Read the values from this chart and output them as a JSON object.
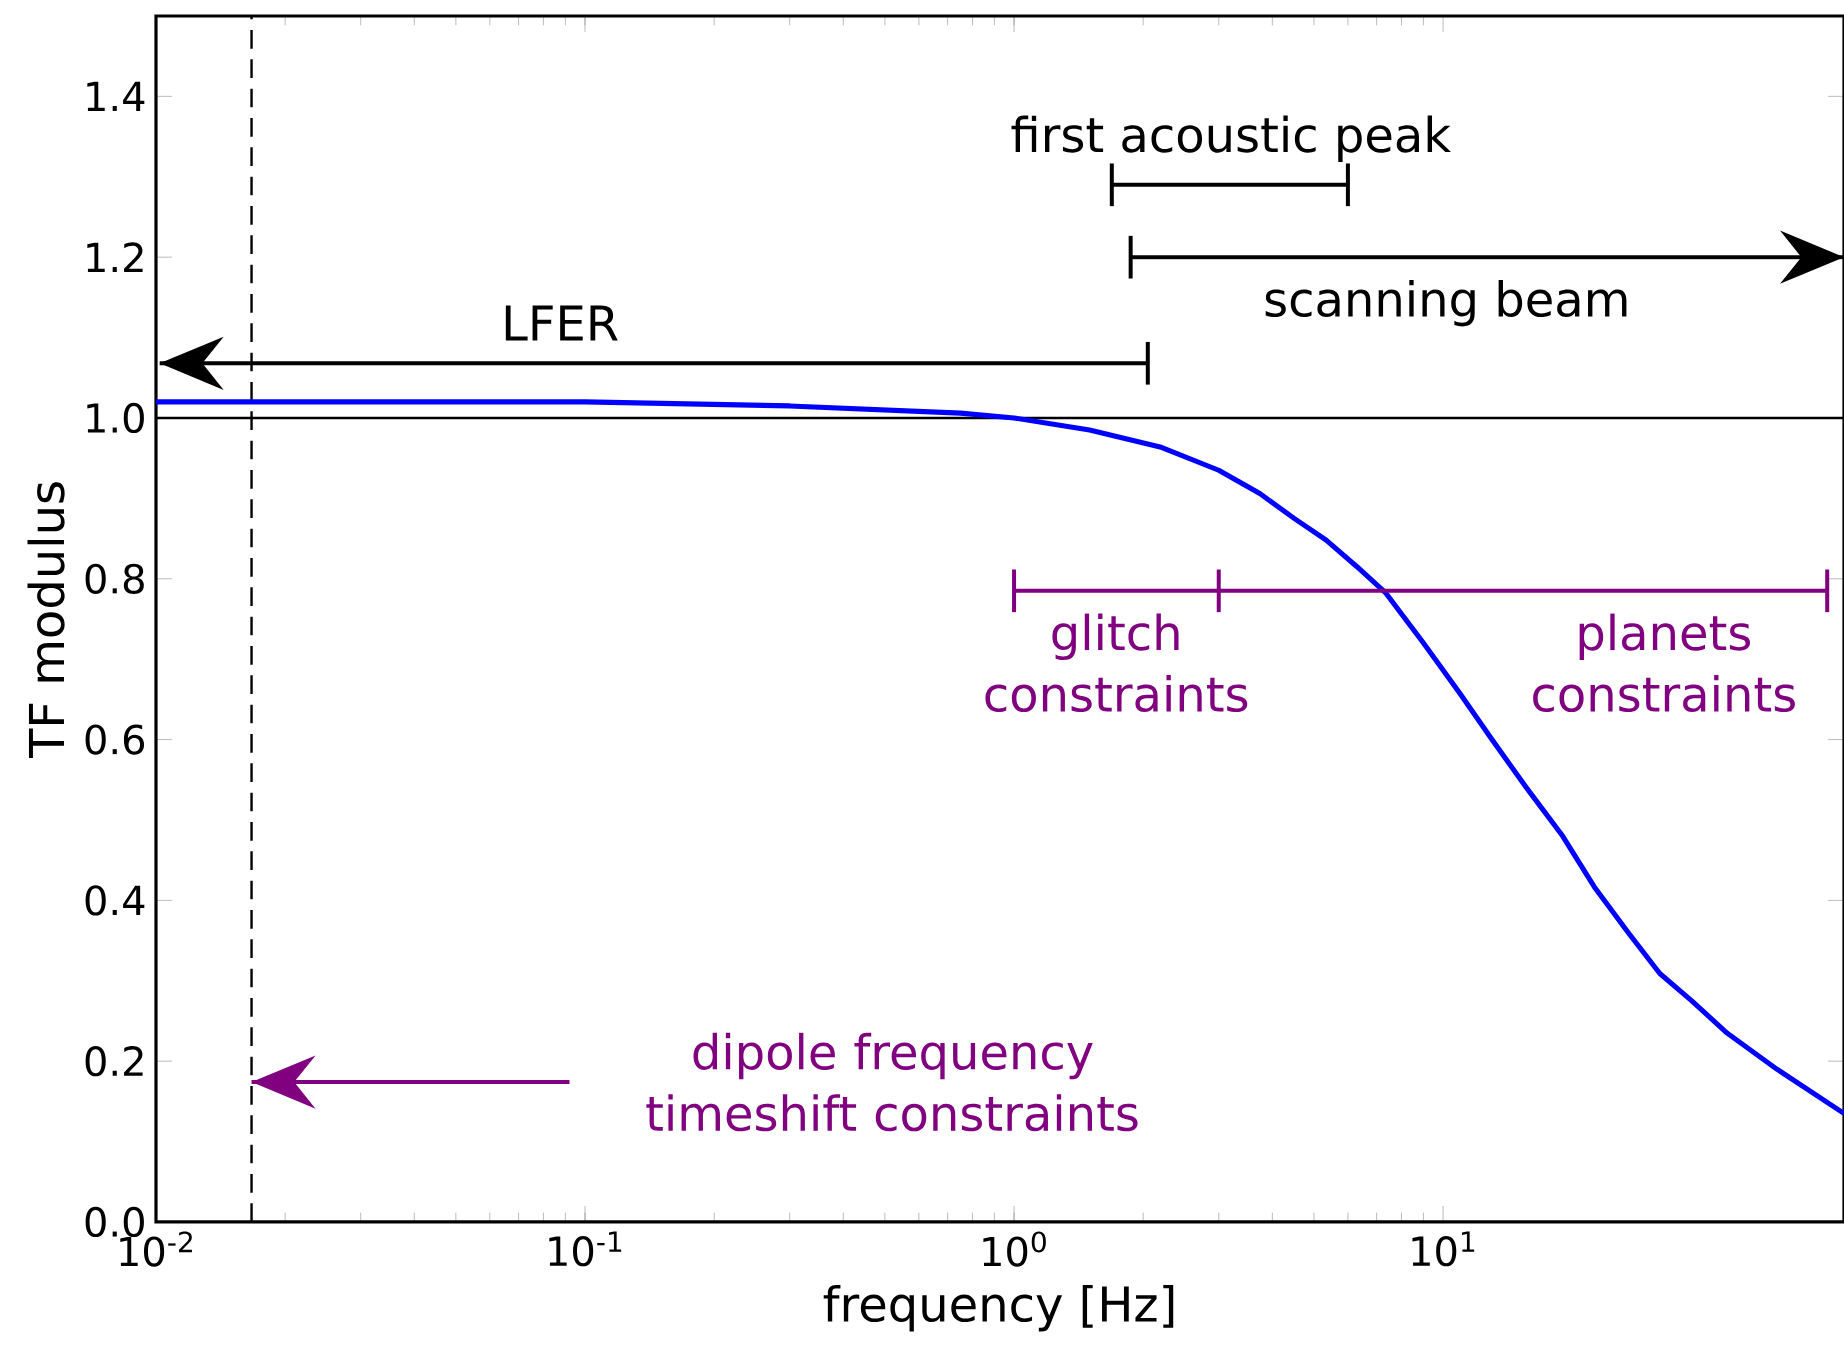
{
  "chart_data": {
    "type": "line",
    "xlabel": "frequency [Hz]",
    "ylabel": "TF modulus",
    "log": "x",
    "xlim": [
      0.01,
      86
    ],
    "ylim": [
      0,
      1.5
    ],
    "xticks": [
      {
        "value": 0.01,
        "label": "10$^{-2}$"
      },
      {
        "value": 0.1,
        "label": "10$^{-1}$"
      },
      {
        "value": 1,
        "label": "10$^{0}$"
      },
      {
        "value": 10,
        "label": "10$^{1}$"
      }
    ],
    "yticks": [
      {
        "value": 0,
        "label": "0.0"
      },
      {
        "value": 0.2,
        "label": "0.2"
      },
      {
        "value": 0.4,
        "label": "0.4"
      },
      {
        "value": 0.6,
        "label": "0.6"
      },
      {
        "value": 0.8,
        "label": "0.8"
      },
      {
        "value": 1,
        "label": "1.0"
      },
      {
        "value": 1.2,
        "label": "1.2"
      },
      {
        "value": 1.4,
        "label": "1.4"
      }
    ],
    "series": [
      {
        "color": "#0000ff",
        "x": [
          0.01,
          0.03,
          0.1,
          0.3,
          0.75,
          1,
          1.5,
          2.19,
          3,
          3.74,
          4.5,
          5.34,
          6.3,
          7.36,
          9,
          10.96,
          13,
          15.6,
          19,
          22.5,
          27,
          32,
          38,
          45.9,
          60,
          86
        ],
        "values": [
          1.02,
          1.02,
          1.02,
          1.015,
          1.006,
          1.0,
          0.985,
          0.964,
          0.935,
          0.906,
          0.875,
          0.848,
          0.815,
          0.782,
          0.72,
          0.657,
          0.6,
          0.541,
          0.48,
          0.417,
          0.36,
          0.309,
          0.275,
          0.235,
          0.19,
          0.135
        ]
      },
      {
        "color": "#000000",
        "x": [
          1.69,
          6.0
        ],
        "values": [
          1.29,
          1.29
        ]
      },
      {
        "color": "#000000",
        "x": [
          0.0102,
          2.05
        ],
        "values": [
          1.068,
          1.068
        ]
      },
      {
        "color": "#000000",
        "x": [
          1.87,
          86
        ],
        "values": [
          1.2,
          1.2
        ]
      },
      {
        "color": "#800080",
        "x": [
          1,
          3,
          78.6
        ],
        "values": [
          0.785,
          0.785,
          0.785
        ]
      },
      {
        "color": "#800080",
        "x": [
          0.0167,
          0.092
        ],
        "values": [
          0.174,
          0.174
        ]
      }
    ],
    "ref_lines": [
      {
        "axis": "y",
        "value": 1,
        "color": "#000000"
      },
      {
        "axis": "x",
        "value": 0.0167,
        "color": "#000000",
        "line_style": "dashed"
      }
    ],
    "annotations": [
      {
        "text": "first acoustic peak",
        "x": 3.2,
        "y": 1.29
      },
      {
        "text": "LFER",
        "x": 0.0875,
        "y": 1.068
      },
      {
        "text": "scanning beam",
        "x": 10.2,
        "y": 1.2
      },
      {
        "text": "glitch constraints",
        "x": 1.73,
        "y": 0.785
      },
      {
        "text": "planets constraints",
        "x": 32.7,
        "y": 0.785
      },
      {
        "text": "dipole frequency timeshift constraints",
        "x": 0.092,
        "y": 0.174
      }
    ]
  }
}
